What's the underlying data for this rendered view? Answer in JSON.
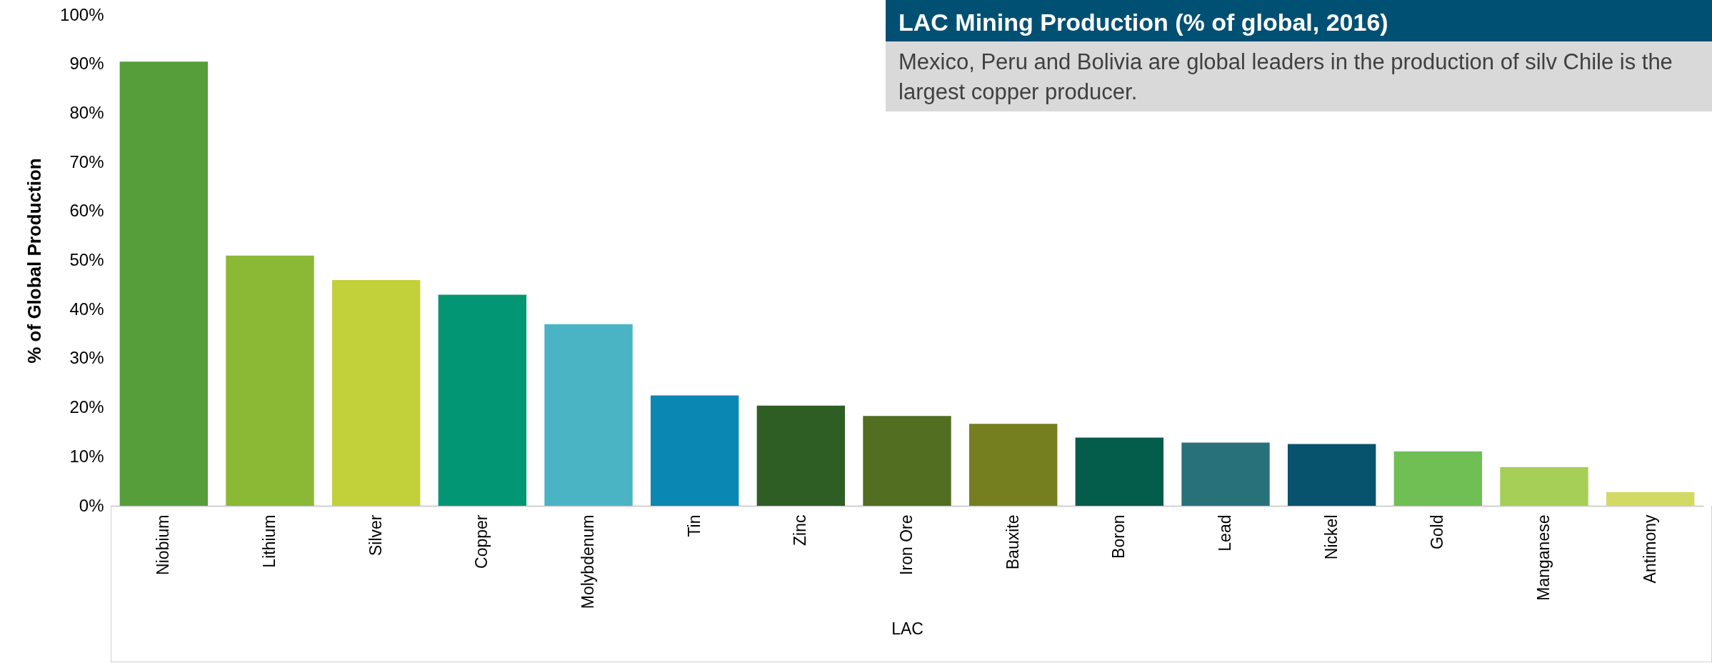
{
  "chart_data": {
    "type": "bar",
    "title": "LAC Mining Production (% of global, 2016)",
    "subtitle": "Mexico, Peru and Bolivia are global leaders in the production of silv Chile is the largest copper producer.",
    "xlabel": "LAC",
    "ylabel": "% of Global Production",
    "categories": [
      "Niobium",
      "Lithium",
      "Silver",
      "Copper",
      "Molybdenum",
      "Tin",
      "Zinc",
      "Iron Ore",
      "Bauxite",
      "Boron",
      "Lead",
      "Nickel",
      "Gold",
      "Manganese",
      "Antimony"
    ],
    "values": [
      90.5,
      51,
      46,
      43,
      37,
      22.5,
      20.4,
      18.3,
      16.7,
      13.9,
      12.9,
      12.6,
      11.1,
      7.9,
      2.8
    ],
    "colors": [
      "#559e3a",
      "#8bb835",
      "#c2d03a",
      "#039675",
      "#4ab4c5",
      "#0b87b3",
      "#2f5e24",
      "#526e20",
      "#767f20",
      "#045c4a",
      "#28717b",
      "#07526d",
      "#6fbf55",
      "#a6cf57",
      "#d2da64"
    ],
    "ylim": [
      0,
      100
    ],
    "yticks": [
      {
        "value": 0,
        "label": "0%"
      },
      {
        "value": 10,
        "label": "10%"
      },
      {
        "value": 20,
        "label": "20%"
      },
      {
        "value": 30,
        "label": "30%"
      },
      {
        "value": 40,
        "label": "40%"
      },
      {
        "value": 50,
        "label": "50%"
      },
      {
        "value": 60,
        "label": "60%"
      },
      {
        "value": 70,
        "label": "70%"
      },
      {
        "value": 80,
        "label": "80%"
      },
      {
        "value": 90,
        "label": "90%"
      },
      {
        "value": 100,
        "label": "100%"
      }
    ]
  }
}
